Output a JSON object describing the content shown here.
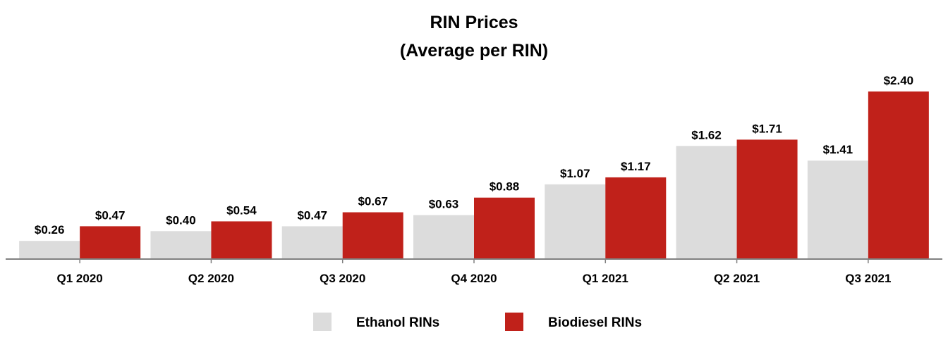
{
  "chart_data": {
    "type": "bar",
    "title": "RIN Prices",
    "subtitle": "(Average per RIN)",
    "categories": [
      "Q1 2020",
      "Q2 2020",
      "Q3 2020",
      "Q4 2020",
      "Q1 2021",
      "Q2 2021",
      "Q3 2021"
    ],
    "series": [
      {
        "name": "Ethanol RINs",
        "color": "#dcdcdc",
        "values": [
          0.26,
          0.4,
          0.47,
          0.63,
          1.07,
          1.62,
          1.41
        ],
        "labels": [
          "$0.26",
          "$0.40",
          "$0.47",
          "$0.63",
          "$1.07",
          "$1.62",
          "$1.41"
        ]
      },
      {
        "name": "Biodiesel RINs",
        "color": "#c0211a",
        "values": [
          0.47,
          0.54,
          0.67,
          0.88,
          1.17,
          1.71,
          2.4
        ],
        "labels": [
          "$0.47",
          "$0.54",
          "$0.67",
          "$0.88",
          "$1.17",
          "$1.71",
          "$2.40"
        ]
      }
    ],
    "xlabel": "",
    "ylabel": "",
    "ylim": [
      0,
      2.6
    ],
    "grid": false,
    "legend": "bottom-center",
    "axis_color": "#808080"
  }
}
